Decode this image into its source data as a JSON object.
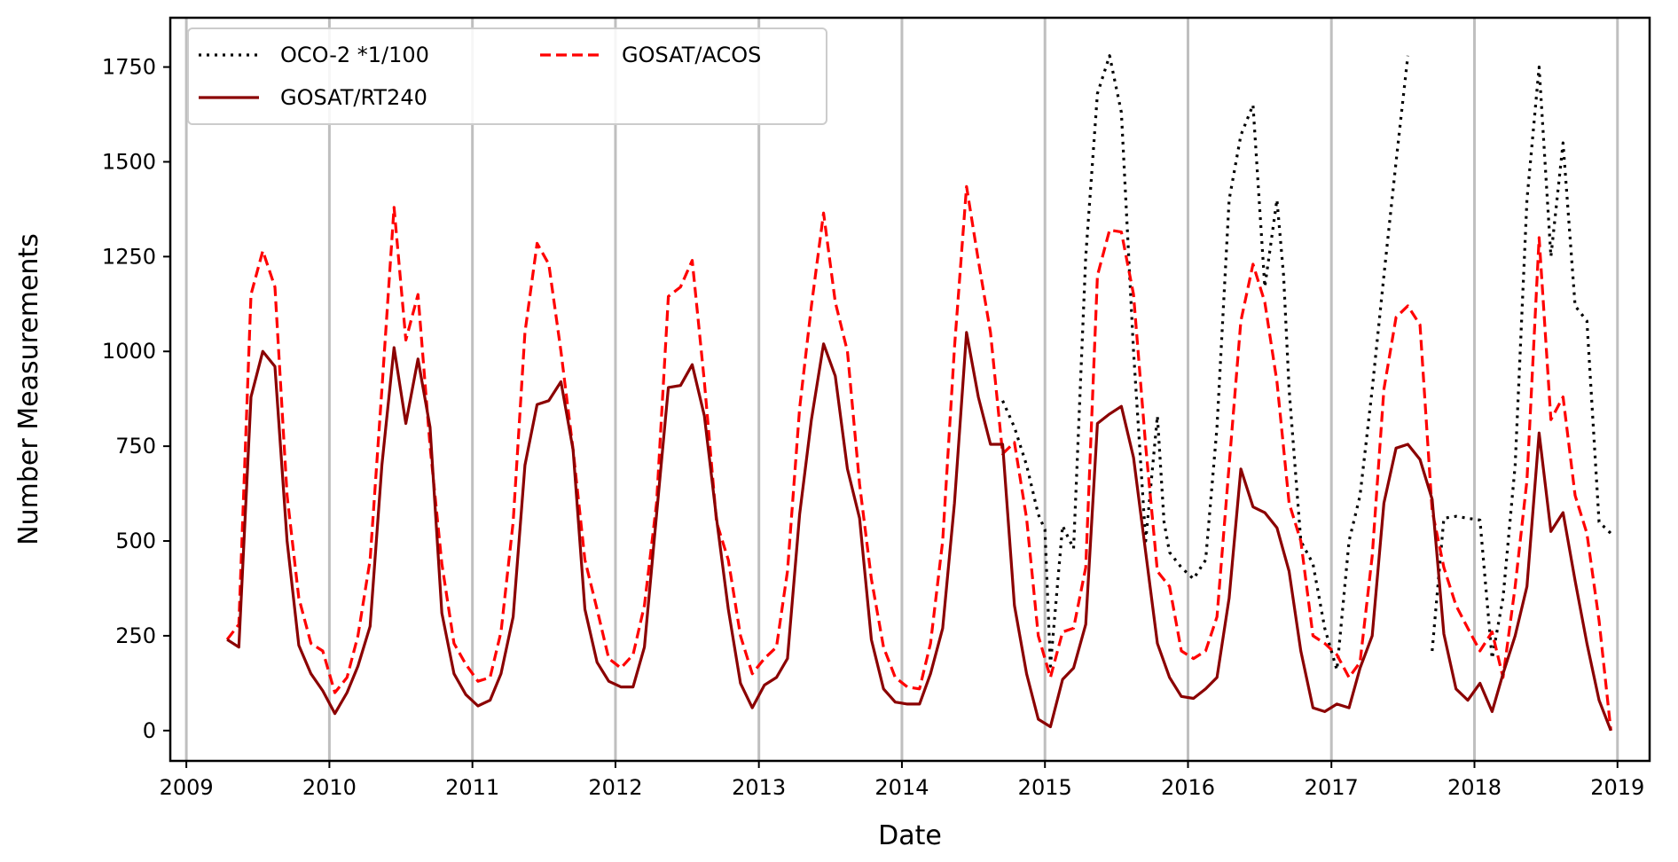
{
  "chart_data": {
    "type": "line",
    "title": "",
    "xlabel": "Date",
    "ylabel": "Number Measurements",
    "xlim": [
      "2008-11-21",
      "2019-03-24"
    ],
    "ylim": [
      -80,
      1880
    ],
    "xticks": [
      "2009",
      "2010",
      "2011",
      "2012",
      "2013",
      "2014",
      "2015",
      "2016",
      "2017",
      "2018",
      "2019"
    ],
    "yticks": [
      0,
      250,
      500,
      750,
      1000,
      1250,
      1500,
      1750
    ],
    "grid": "vertical lines at year ticks",
    "legend": {
      "placement": "top-left",
      "columns": 2
    },
    "colors": {
      "oco2": "#000000",
      "acos": "#ff0000",
      "rt240": "#8b0000",
      "grid": "#bfbfbf"
    },
    "series": [
      {
        "name": "OCO-2 *1/100",
        "style": "dotted",
        "color": "#000000",
        "x": [
          "2014-09-15",
          "2014-10-15",
          "2014-11-15",
          "2014-12-15",
          "2015-01-01",
          "2015-01-15",
          "2015-02-15",
          "2015-03-15",
          "2015-04-15",
          "2015-05-15",
          "2015-06-15",
          "2015-07-15",
          "2015-08-15",
          "2015-09-15",
          "2015-10-15",
          "2015-11-01",
          "2015-11-15",
          "2015-12-15",
          "2016-01-15",
          "2016-02-15",
          "2016-03-15",
          "2016-04-15",
          "2016-05-15",
          "2016-06-15",
          "2016-07-15",
          "2016-08-15",
          "2016-09-01",
          "2016-09-15",
          "2016-10-15",
          "2016-11-15",
          "2016-12-15",
          "2017-01-15",
          "2017-02-15",
          "2017-03-15",
          "2017-04-15",
          "2017-05-15",
          "2017-06-15",
          "2017-07-15",
          "2017-08-15",
          null,
          "2017-09-15",
          "2017-10-15",
          "2017-11-15",
          "2017-12-15",
          "2018-01-15",
          "2018-02-15",
          "2018-03-15",
          "2018-04-15",
          "2018-05-15",
          "2018-06-15",
          "2018-07-15",
          "2018-08-15",
          "2018-09-15",
          "2018-10-15",
          "2018-11-15",
          "2018-12-15"
        ],
        "y": [
          870,
          800,
          700,
          570,
          530,
          170,
          540,
          480,
          1250,
          1680,
          1780,
          1630,
          1000,
          500,
          830,
          550,
          470,
          430,
          400,
          450,
          800,
          1400,
          1570,
          1650,
          1170,
          1400,
          1200,
          900,
          500,
          440,
          270,
          160,
          500,
          620,
          900,
          1200,
          1500,
          1780,
          null,
          null,
          210,
          560,
          565,
          560,
          555,
          190,
          350,
          700,
          1400,
          1750,
          1250,
          1550,
          1120,
          1080,
          550,
          520
        ]
      },
      {
        "name": "GOSAT/ACOS",
        "style": "dashed",
        "color": "#ff0000",
        "x": [
          "2009-04-15",
          "2009-05-15",
          "2009-06-15",
          "2009-07-15",
          "2009-08-15",
          "2009-09-15",
          "2009-10-15",
          "2009-11-15",
          "2009-12-15",
          "2010-01-15",
          "2010-02-15",
          "2010-03-15",
          "2010-04-15",
          "2010-05-15",
          "2010-06-15",
          "2010-07-15",
          "2010-08-15",
          "2010-09-15",
          "2010-10-15",
          "2010-11-15",
          "2010-12-15",
          "2011-01-15",
          "2011-02-15",
          "2011-03-15",
          "2011-04-15",
          "2011-05-15",
          "2011-06-15",
          "2011-07-15",
          "2011-08-15",
          "2011-09-15",
          "2011-10-15",
          "2011-11-15",
          "2011-12-15",
          "2012-01-15",
          "2012-02-15",
          "2012-03-15",
          "2012-04-15",
          "2012-05-15",
          "2012-06-15",
          "2012-07-15",
          "2012-08-15",
          "2012-09-15",
          "2012-10-15",
          "2012-11-15",
          "2012-12-15",
          "2013-01-15",
          "2013-02-15",
          "2013-03-15",
          "2013-04-15",
          "2013-05-15",
          "2013-06-15",
          "2013-07-15",
          "2013-08-15",
          "2013-09-15",
          "2013-10-15",
          "2013-11-15",
          "2013-12-15",
          "2014-01-15",
          "2014-02-15",
          "2014-03-15",
          "2014-04-15",
          "2014-05-15",
          "2014-06-15",
          "2014-07-15",
          "2014-08-15",
          "2014-09-15",
          "2014-10-15",
          "2014-11-15",
          "2014-12-15",
          "2015-01-15",
          "2015-02-15",
          "2015-03-15",
          "2015-04-15",
          "2015-05-15",
          "2015-06-15",
          "2015-07-15",
          "2015-08-15",
          "2015-09-15",
          "2015-10-15",
          "2015-11-15",
          "2015-12-15",
          "2016-01-15",
          "2016-02-15",
          "2016-03-15",
          "2016-04-15",
          "2016-05-15",
          "2016-06-15",
          "2016-07-15",
          "2016-08-15",
          "2016-09-15",
          "2016-10-15",
          "2016-11-15",
          "2016-12-15",
          "2017-01-15",
          "2017-02-15",
          "2017-03-15",
          "2017-04-15",
          "2017-05-15",
          "2017-06-15",
          "2017-07-15",
          "2017-08-15",
          "2017-09-15",
          "2017-10-15",
          "2017-11-15",
          "2017-12-15",
          "2018-01-15",
          "2018-02-15",
          "2018-03-15",
          "2018-04-15",
          "2018-05-15",
          "2018-06-15",
          "2018-07-15",
          "2018-08-15",
          "2018-09-15",
          "2018-10-15",
          "2018-11-15",
          "2018-12-15"
        ],
        "y": [
          240,
          280,
          1150,
          1265,
          1170,
          620,
          350,
          230,
          210,
          100,
          140,
          250,
          450,
          900,
          1380,
          1030,
          1150,
          750,
          440,
          230,
          175,
          130,
          140,
          260,
          550,
          1050,
          1285,
          1230,
          1000,
          740,
          450,
          320,
          190,
          165,
          200,
          330,
          600,
          1145,
          1170,
          1240,
          920,
          550,
          450,
          250,
          150,
          190,
          220,
          420,
          850,
          1120,
          1365,
          1130,
          1000,
          650,
          400,
          220,
          140,
          115,
          110,
          230,
          500,
          1010,
          1435,
          1240,
          1050,
          730,
          760,
          560,
          250,
          140,
          260,
          270,
          430,
          1200,
          1320,
          1315,
          1150,
          750,
          420,
          380,
          210,
          190,
          210,
          300,
          700,
          1080,
          1230,
          1130,
          920,
          600,
          500,
          250,
          230,
          200,
          140,
          180,
          460,
          900,
          1090,
          1120,
          1070,
          580,
          430,
          330,
          270,
          210,
          260,
          140,
          380,
          660,
          1300,
          820,
          880,
          620,
          520,
          290,
          0
        ]
      },
      {
        "name": "GOSAT/RT240",
        "style": "solid",
        "color": "#8b0000",
        "x": [
          "2009-04-15",
          "2009-05-15",
          "2009-06-15",
          "2009-07-15",
          "2009-08-15",
          "2009-09-15",
          "2009-10-15",
          "2009-11-15",
          "2009-12-15",
          "2010-01-15",
          "2010-02-15",
          "2010-03-15",
          "2010-04-15",
          "2010-05-15",
          "2010-06-15",
          "2010-07-15",
          "2010-08-15",
          "2010-09-15",
          "2010-10-15",
          "2010-11-15",
          "2010-12-15",
          "2011-01-15",
          "2011-02-15",
          "2011-03-15",
          "2011-04-15",
          "2011-05-15",
          "2011-06-15",
          "2011-07-15",
          "2011-08-15",
          "2011-09-15",
          "2011-10-15",
          "2011-11-15",
          "2011-12-15",
          "2012-01-15",
          "2012-02-15",
          "2012-03-15",
          "2012-04-15",
          "2012-05-15",
          "2012-06-15",
          "2012-07-15",
          "2012-08-15",
          "2012-09-15",
          "2012-10-15",
          "2012-11-15",
          "2012-12-15",
          "2013-01-15",
          "2013-02-15",
          "2013-03-15",
          "2013-04-15",
          "2013-05-15",
          "2013-06-15",
          "2013-07-15",
          "2013-08-15",
          "2013-09-15",
          "2013-10-15",
          "2013-11-15",
          "2013-12-15",
          "2014-01-15",
          "2014-02-15",
          "2014-03-15",
          "2014-04-15",
          "2014-05-15",
          "2014-06-15",
          "2014-07-15",
          "2014-08-15",
          "2014-09-15",
          "2014-10-15",
          "2014-11-15",
          "2014-12-15",
          "2015-01-15",
          "2015-02-15",
          "2015-03-15",
          "2015-04-15",
          "2015-05-15",
          "2015-06-15",
          "2015-07-15",
          "2015-08-15",
          "2015-09-15",
          "2015-10-15",
          "2015-11-15",
          "2015-12-15",
          "2016-01-15",
          "2016-02-15",
          "2016-03-15",
          "2016-04-15",
          "2016-05-15",
          "2016-06-15",
          "2016-07-15",
          "2016-08-15",
          "2016-09-15",
          "2016-10-15",
          "2016-11-15",
          "2016-12-15",
          "2017-01-15",
          "2017-02-15",
          "2017-03-15",
          "2017-04-15",
          "2017-05-15",
          "2017-06-15",
          "2017-07-15",
          "2017-08-15",
          "2017-09-15",
          "2017-10-15",
          "2017-11-15",
          "2017-12-15",
          "2018-01-15",
          "2018-02-15",
          "2018-03-15",
          "2018-04-15",
          "2018-05-15",
          "2018-06-15",
          "2018-07-15",
          "2018-08-15",
          "2018-09-15",
          "2018-10-15",
          "2018-11-15",
          "2018-12-15"
        ],
        "y": [
          240,
          220,
          880,
          1000,
          960,
          500,
          225,
          150,
          105,
          45,
          100,
          170,
          275,
          700,
          1010,
          810,
          980,
          800,
          310,
          150,
          95,
          65,
          80,
          150,
          300,
          700,
          860,
          870,
          920,
          740,
          320,
          180,
          130,
          115,
          115,
          220,
          570,
          905,
          910,
          965,
          830,
          560,
          320,
          125,
          60,
          120,
          140,
          190,
          570,
          820,
          1020,
          935,
          690,
          560,
          240,
          110,
          75,
          70,
          70,
          150,
          270,
          600,
          1050,
          880,
          755,
          755,
          330,
          150,
          30,
          10,
          135,
          165,
          280,
          810,
          835,
          855,
          720,
          470,
          230,
          140,
          90,
          85,
          110,
          140,
          350,
          690,
          590,
          575,
          535,
          420,
          210,
          60,
          50,
          70,
          60,
          165,
          250,
          600,
          745,
          755,
          715,
          610,
          255,
          110,
          80,
          125,
          50,
          150,
          250,
          380,
          785,
          525,
          575,
          395,
          230,
          80,
          0
        ]
      }
    ]
  }
}
